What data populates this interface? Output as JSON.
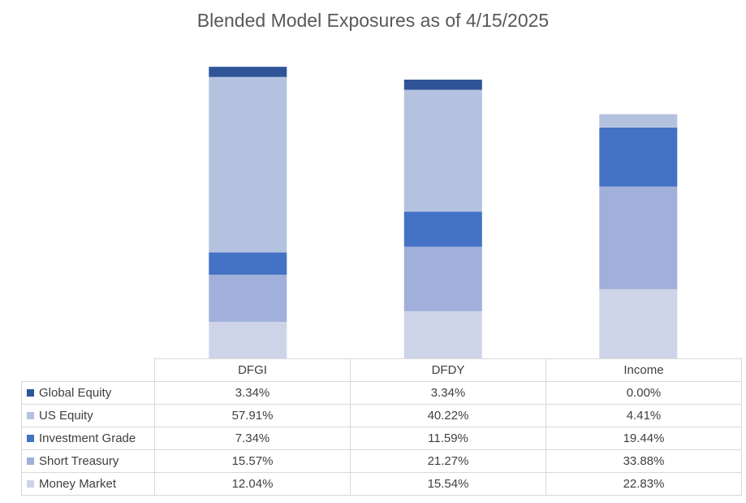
{
  "chart_data": {
    "type": "bar",
    "stacked": true,
    "title": "Blended Model Exposures as of 4/15/2025",
    "categories": [
      "DFGI",
      "DFDY",
      "Income"
    ],
    "series": [
      {
        "name": "Money Market",
        "color": "#ced4e8",
        "values": [
          12.04,
          15.54,
          22.83
        ],
        "labels": [
          "12.04%",
          "15.54%",
          "22.83%"
        ]
      },
      {
        "name": "Short Treasury",
        "color": "#a1b0da",
        "values": [
          15.57,
          21.27,
          33.88
        ],
        "labels": [
          "15.57%",
          "21.27%",
          "33.88%"
        ]
      },
      {
        "name": "Investment Grade",
        "color": "#4472c4",
        "values": [
          7.34,
          11.59,
          19.44
        ],
        "labels": [
          "7.34%",
          "11.59%",
          "19.44%"
        ]
      },
      {
        "name": "US Equity",
        "color": "#b4c2e0",
        "values": [
          57.91,
          40.22,
          4.41
        ],
        "labels": [
          "57.91%",
          "40.22%",
          "4.41%"
        ]
      },
      {
        "name": "Global Equity",
        "color": "#2f5597",
        "values": [
          3.34,
          3.34,
          0.0
        ],
        "labels": [
          "3.34%",
          "3.34%",
          "0.00%"
        ]
      }
    ],
    "table_row_order": [
      "Global Equity",
      "US Equity",
      "Investment Grade",
      "Short Treasury",
      "Money Market"
    ],
    "ylim": [
      0,
      100
    ],
    "xlabel": "",
    "ylabel": "",
    "grid": false,
    "legend": "data-table"
  }
}
